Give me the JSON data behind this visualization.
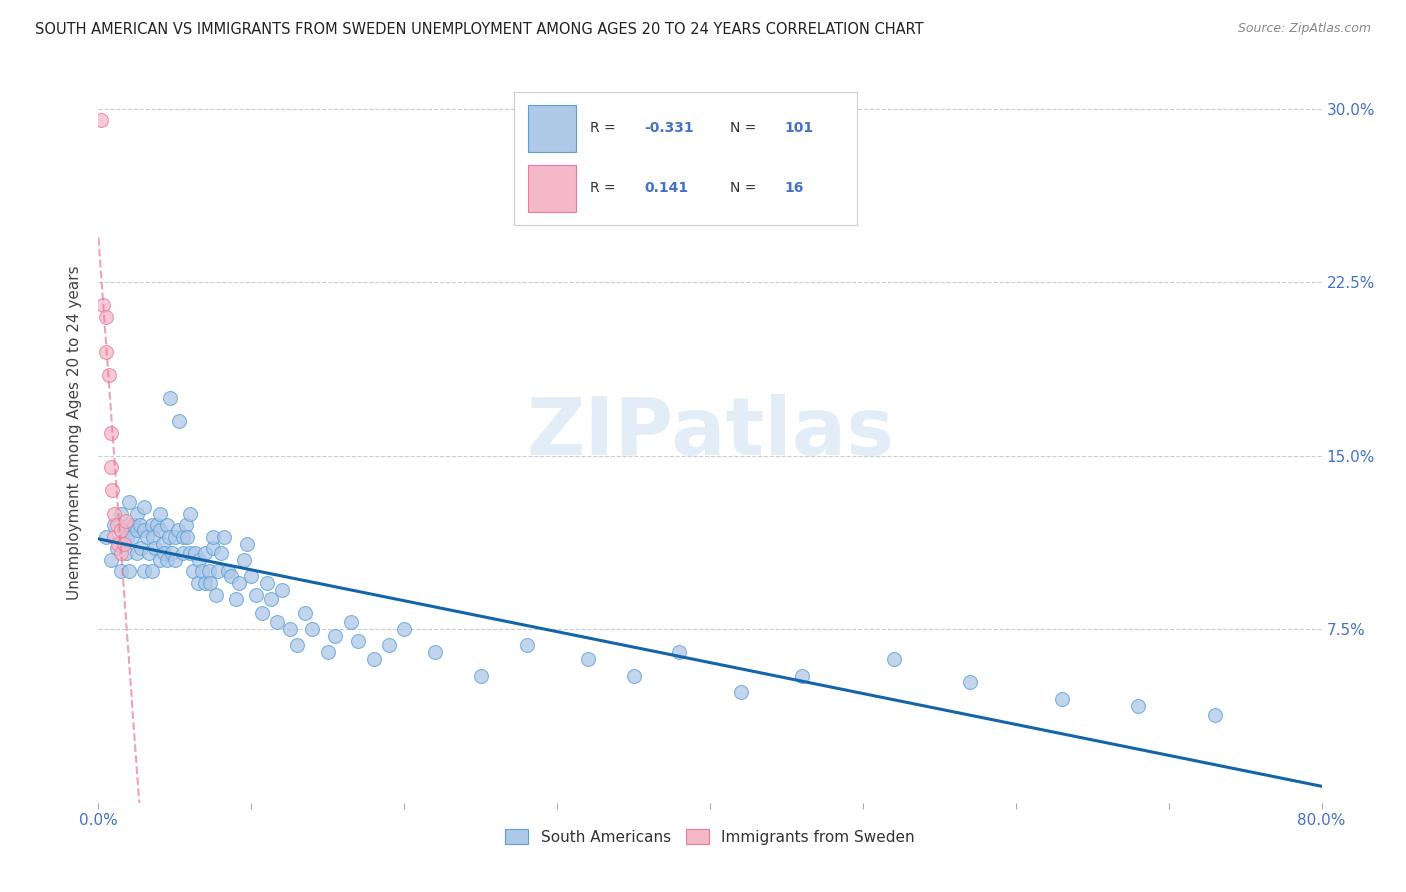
{
  "title": "SOUTH AMERICAN VS IMMIGRANTS FROM SWEDEN UNEMPLOYMENT AMONG AGES 20 TO 24 YEARS CORRELATION CHART",
  "source": "Source: ZipAtlas.com",
  "ylabel": "Unemployment Among Ages 20 to 24 years",
  "xlim": [
    0.0,
    0.8
  ],
  "ylim": [
    0.0,
    0.32
  ],
  "xticks": [
    0.0,
    0.1,
    0.2,
    0.3,
    0.4,
    0.5,
    0.6,
    0.7,
    0.8
  ],
  "xticklabels_show": [
    "0.0%",
    "",
    "",
    "",
    "",
    "",
    "",
    "",
    "80.0%"
  ],
  "yticks_right": [
    0.0,
    0.075,
    0.15,
    0.225,
    0.3
  ],
  "yticklabels_right": [
    "",
    "7.5%",
    "15.0%",
    "22.5%",
    "30.0%"
  ],
  "grid_yticks": [
    0.075,
    0.15,
    0.225,
    0.3
  ],
  "legend_labels": [
    "South Americans",
    "Immigrants from Sweden"
  ],
  "R_blue": -0.331,
  "N_blue": 101,
  "R_pink": 0.141,
  "N_pink": 16,
  "blue_color": "#aec8e8",
  "pink_color": "#f4b8c8",
  "blue_edge_color": "#5a9fd4",
  "pink_edge_color": "#e87a9a",
  "blue_line_color": "#1464a8",
  "pink_line_color": "#d06080",
  "axis_tick_color": "#4472c4",
  "watermark_color": "#c8ddf0",
  "blue_scatter_x": [
    0.005,
    0.008,
    0.01,
    0.012,
    0.015,
    0.015,
    0.017,
    0.018,
    0.019,
    0.02,
    0.02,
    0.02,
    0.022,
    0.023,
    0.025,
    0.025,
    0.025,
    0.027,
    0.028,
    0.03,
    0.03,
    0.03,
    0.032,
    0.033,
    0.035,
    0.035,
    0.036,
    0.037,
    0.038,
    0.04,
    0.04,
    0.04,
    0.042,
    0.043,
    0.045,
    0.045,
    0.046,
    0.047,
    0.048,
    0.05,
    0.05,
    0.052,
    0.053,
    0.055,
    0.055,
    0.057,
    0.058,
    0.06,
    0.06,
    0.062,
    0.063,
    0.065,
    0.066,
    0.068,
    0.07,
    0.07,
    0.072,
    0.073,
    0.075,
    0.075,
    0.077,
    0.078,
    0.08,
    0.082,
    0.085,
    0.087,
    0.09,
    0.092,
    0.095,
    0.097,
    0.1,
    0.103,
    0.107,
    0.11,
    0.113,
    0.117,
    0.12,
    0.125,
    0.13,
    0.135,
    0.14,
    0.15,
    0.155,
    0.165,
    0.17,
    0.18,
    0.19,
    0.2,
    0.22,
    0.25,
    0.28,
    0.32,
    0.35,
    0.38,
    0.42,
    0.46,
    0.52,
    0.57,
    0.63,
    0.68,
    0.73
  ],
  "blue_scatter_y": [
    0.115,
    0.105,
    0.12,
    0.11,
    0.125,
    0.1,
    0.118,
    0.108,
    0.115,
    0.12,
    0.1,
    0.13,
    0.115,
    0.12,
    0.125,
    0.108,
    0.118,
    0.12,
    0.11,
    0.118,
    0.1,
    0.128,
    0.115,
    0.108,
    0.12,
    0.1,
    0.115,
    0.11,
    0.12,
    0.118,
    0.105,
    0.125,
    0.112,
    0.108,
    0.12,
    0.105,
    0.115,
    0.175,
    0.108,
    0.115,
    0.105,
    0.118,
    0.165,
    0.115,
    0.108,
    0.12,
    0.115,
    0.108,
    0.125,
    0.1,
    0.108,
    0.095,
    0.105,
    0.1,
    0.108,
    0.095,
    0.1,
    0.095,
    0.11,
    0.115,
    0.09,
    0.1,
    0.108,
    0.115,
    0.1,
    0.098,
    0.088,
    0.095,
    0.105,
    0.112,
    0.098,
    0.09,
    0.082,
    0.095,
    0.088,
    0.078,
    0.092,
    0.075,
    0.068,
    0.082,
    0.075,
    0.065,
    0.072,
    0.078,
    0.07,
    0.062,
    0.068,
    0.075,
    0.065,
    0.055,
    0.068,
    0.062,
    0.055,
    0.065,
    0.048,
    0.055,
    0.062,
    0.052,
    0.045,
    0.042,
    0.038
  ],
  "pink_scatter_x": [
    0.002,
    0.003,
    0.005,
    0.005,
    0.007,
    0.008,
    0.008,
    0.009,
    0.01,
    0.01,
    0.012,
    0.013,
    0.015,
    0.015,
    0.017,
    0.018
  ],
  "pink_scatter_y": [
    0.295,
    0.215,
    0.21,
    0.195,
    0.185,
    0.16,
    0.145,
    0.135,
    0.125,
    0.115,
    0.12,
    0.112,
    0.118,
    0.108,
    0.112,
    0.122
  ],
  "pink_line_x_start": 0.0,
  "pink_line_x_end": 0.048,
  "blue_line_x_start": 0.0,
  "blue_line_x_end": 0.8
}
